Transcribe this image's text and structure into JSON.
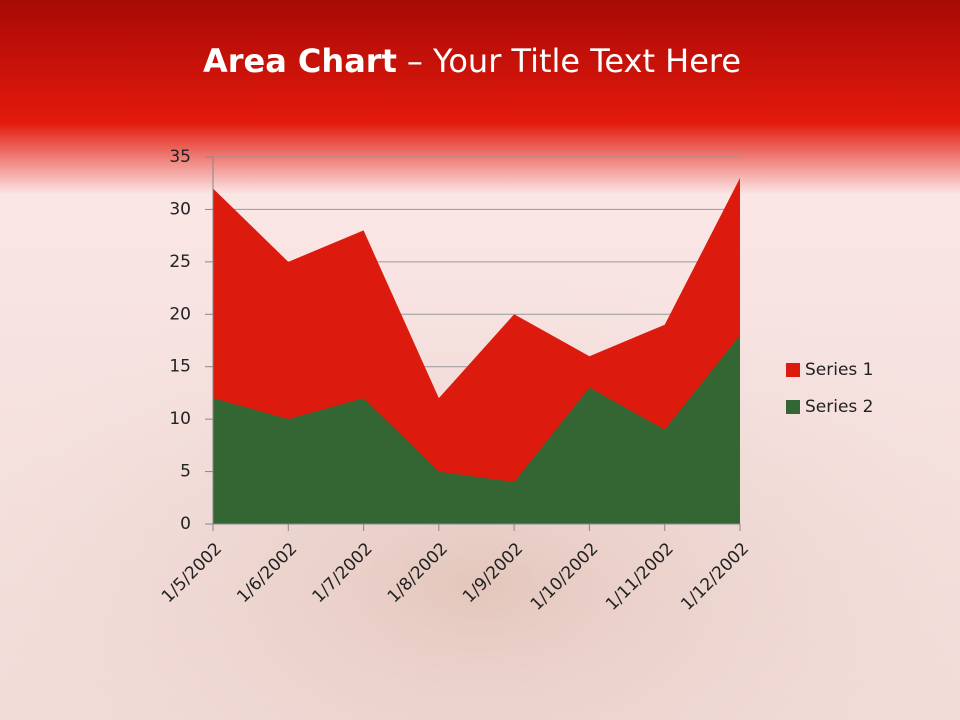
{
  "chart_data": {
    "type": "area",
    "title_bold": "Area Chart",
    "title_rest": "– Your Title Text Here",
    "categories": [
      "1/5/2002",
      "1/6/2002",
      "1/7/2002",
      "1/8/2002",
      "1/9/2002",
      "1/10/2002",
      "1/11/2002",
      "1/12/2002"
    ],
    "series": [
      {
        "name": "Series 1",
        "color": "#dd1a0e",
        "values": [
          32,
          25,
          28,
          12,
          20,
          16,
          19,
          33
        ]
      },
      {
        "name": "Series 2",
        "color": "#336633",
        "values": [
          12,
          10,
          12,
          5,
          4,
          13,
          9,
          18
        ]
      }
    ],
    "ylim": [
      0,
      35
    ],
    "yticks": [
      0,
      5,
      10,
      15,
      20,
      25,
      30,
      35
    ],
    "grid": true,
    "legend": "right"
  }
}
